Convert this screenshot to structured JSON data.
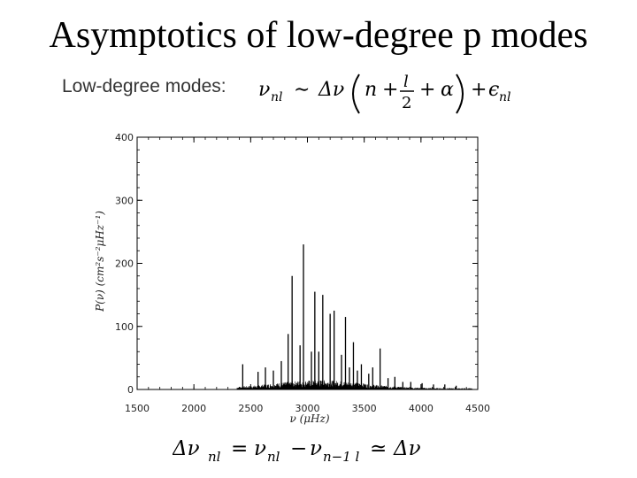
{
  "slide": {
    "title": "Asymptotics of low-degree p modes",
    "formula_label": "Low-degree modes:",
    "formula_nu": "ν",
    "formula_nl_sub": "nl",
    "formula_sim": "∼",
    "formula_delta_nu": "Δν",
    "formula_n": "n",
    "formula_plus": "+",
    "formula_l": "l",
    "formula_2": "2",
    "formula_alpha": "α",
    "formula_eps": "ϵ",
    "bottom_delta_nu": "Δν",
    "bottom_eq": "=",
    "bottom_nu1": "ν",
    "bottom_minus": "−",
    "bottom_nu2": "ν",
    "bottom_sub2": "n−1 l",
    "bottom_simeq": "≃",
    "bottom_delta_nu_rhs": "Δν"
  },
  "chart_data": {
    "type": "line",
    "xlabel": "ν (μHz)",
    "ylabel": "P(ν) (cm²s⁻²μHz⁻¹)",
    "xlim": [
      1500,
      4500
    ],
    "ylim": [
      0,
      400
    ],
    "x_ticks": [
      "1500",
      "2000",
      "2500",
      "3000",
      "3500",
      "4000",
      "4500"
    ],
    "y_ticks": [
      "0",
      "100",
      "200",
      "300",
      "400"
    ],
    "peaks": [
      {
        "nu": 2430,
        "power": 40
      },
      {
        "nu": 2565,
        "power": 28
      },
      {
        "nu": 2630,
        "power": 35
      },
      {
        "nu": 2700,
        "power": 30
      },
      {
        "nu": 2770,
        "power": 45
      },
      {
        "nu": 2830,
        "power": 88
      },
      {
        "nu": 2865,
        "power": 180
      },
      {
        "nu": 2935,
        "power": 70
      },
      {
        "nu": 2965,
        "power": 230
      },
      {
        "nu": 3035,
        "power": 60
      },
      {
        "nu": 3065,
        "power": 155
      },
      {
        "nu": 3100,
        "power": 60
      },
      {
        "nu": 3135,
        "power": 150
      },
      {
        "nu": 3200,
        "power": 120
      },
      {
        "nu": 3235,
        "power": 125
      },
      {
        "nu": 3300,
        "power": 55
      },
      {
        "nu": 3335,
        "power": 115
      },
      {
        "nu": 3370,
        "power": 35
      },
      {
        "nu": 3405,
        "power": 75
      },
      {
        "nu": 3440,
        "power": 30
      },
      {
        "nu": 3475,
        "power": 40
      },
      {
        "nu": 3540,
        "power": 25
      },
      {
        "nu": 3575,
        "power": 35
      },
      {
        "nu": 3640,
        "power": 65
      },
      {
        "nu": 3710,
        "power": 18
      },
      {
        "nu": 3770,
        "power": 20
      },
      {
        "nu": 3840,
        "power": 12
      },
      {
        "nu": 3910,
        "power": 12
      },
      {
        "nu": 4010,
        "power": 10
      },
      {
        "nu": 4110,
        "power": 8
      },
      {
        "nu": 4210,
        "power": 8
      },
      {
        "nu": 4310,
        "power": 6
      }
    ],
    "grid": false
  }
}
